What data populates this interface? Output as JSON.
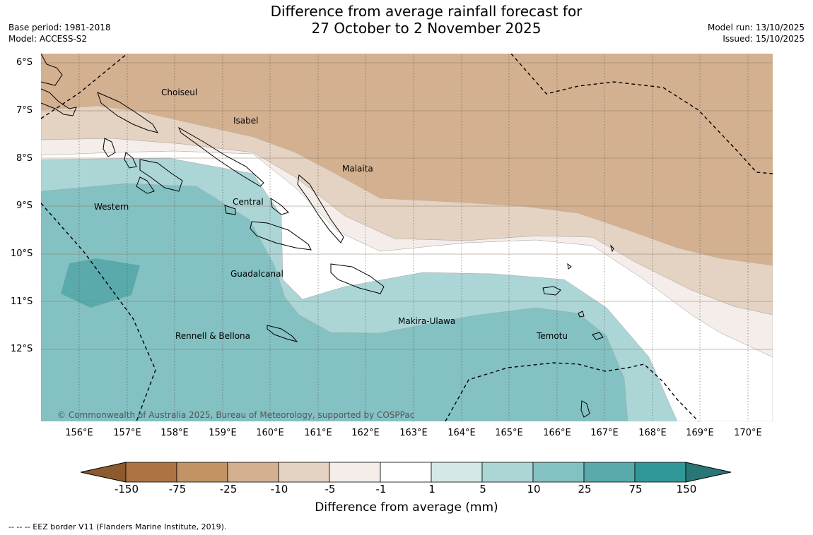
{
  "title": {
    "line1": "Difference from average rainfall forecast for",
    "line2": "27 October to 2 November 2025"
  },
  "meta_left": {
    "base_period": "Base period: 1981-2018",
    "model": "Model: ACCESS-S2"
  },
  "meta_right": {
    "model_run": "Model run: 13/10/2025",
    "issued": "Issued: 15/10/2025"
  },
  "latitude_labels": [
    "6°S",
    "7°S",
    "8°S",
    "9°S",
    "10°S",
    "11°S",
    "12°S"
  ],
  "longitude_labels": [
    "156°E",
    "157°E",
    "158°E",
    "159°E",
    "160°E",
    "161°E",
    "162°E",
    "163°E",
    "164°E",
    "165°E",
    "166°E",
    "167°E",
    "168°E",
    "169°E",
    "170°E"
  ],
  "regions": {
    "choiseul": "Choiseul",
    "isabel": "Isabel",
    "malaita": "Malaita",
    "western": "Western",
    "central": "Central",
    "guadalcanal": "Guadalcanal",
    "makira": "Makira-Ulawa",
    "rennell": "Rennell & Bellona",
    "temotu": "Temotu"
  },
  "copyright": "© Commonwealth of Australia 2025, Bureau of Meteorology, supported by COSPPac",
  "colorbar": {
    "ticks": [
      "-150",
      "-75",
      "-25",
      "-10",
      "-5",
      "-1",
      "1",
      "5",
      "10",
      "25",
      "75",
      "150"
    ],
    "colors": [
      "#8c5a2c",
      "#ad7340",
      "#c29465",
      "#d3b090",
      "#e4d2c2",
      "#f5ede9",
      "#ffffff",
      "#d4e8e8",
      "#acd5d6",
      "#84c1c2",
      "#5aaaab",
      "#319899",
      "#2a7676"
    ],
    "label": "Difference from average (mm)"
  },
  "footer": "--  --  -- EEZ border V11 (Flanders Marine Institute, 2019)."
}
